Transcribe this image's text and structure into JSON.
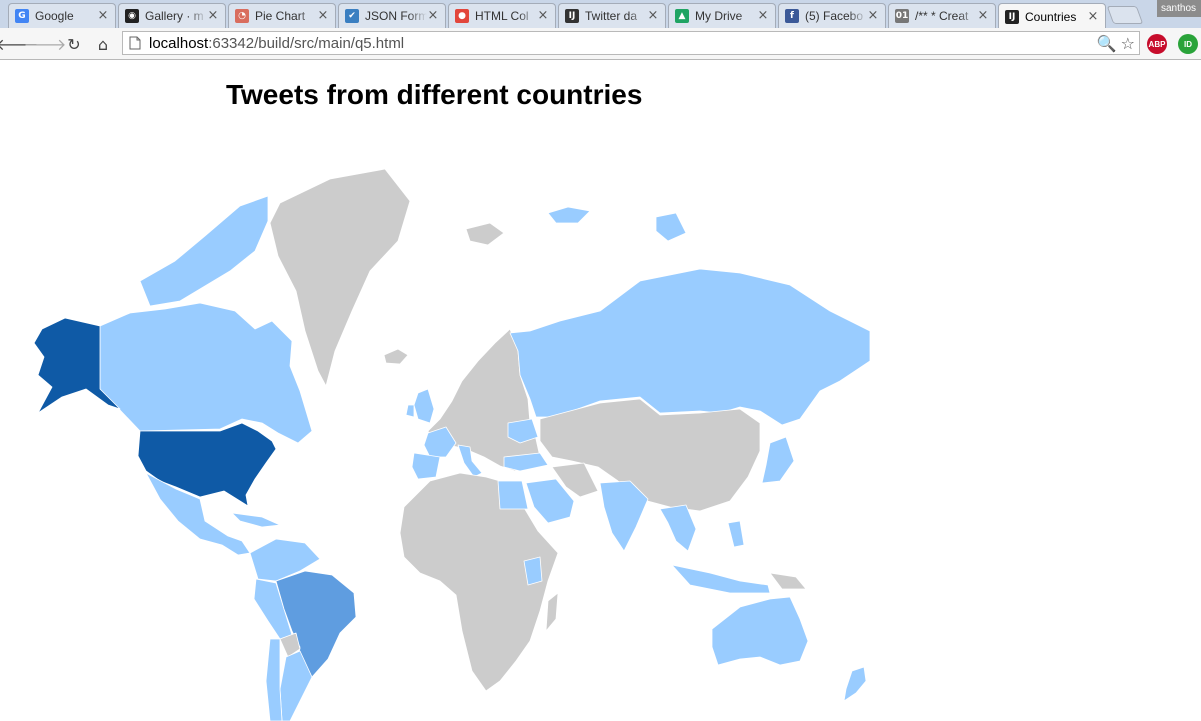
{
  "browser": {
    "tabs": [
      {
        "title": "Google",
        "icon": "google-icon",
        "color": "#4285f4",
        "glyph": "G",
        "active": false
      },
      {
        "title": "Gallery · m",
        "icon": "github-icon",
        "color": "#222222",
        "glyph": "◉",
        "active": false
      },
      {
        "title": "Pie Chart",
        "icon": "pie-chart-icon",
        "color": "#d96d5e",
        "glyph": "◔",
        "active": false
      },
      {
        "title": "JSON Form",
        "icon": "checkbox-icon",
        "color": "#3a7fc1",
        "glyph": "✔",
        "active": false
      },
      {
        "title": "HTML Col",
        "icon": "color-wheel-icon",
        "color": "#e2463b",
        "glyph": "●",
        "active": false
      },
      {
        "title": "Twitter da",
        "icon": "intellij-icon",
        "color": "#333333",
        "glyph": "IJ",
        "active": false
      },
      {
        "title": "My Drive",
        "icon": "drive-icon",
        "color": "#1fa463",
        "glyph": "▲",
        "active": false
      },
      {
        "title": "(5) Facebo",
        "icon": "facebook-icon",
        "color": "#3b5998",
        "glyph": "f",
        "active": false
      },
      {
        "title": "/** * Creat",
        "icon": "binary-file-icon",
        "color": "#777777",
        "glyph": "01",
        "active": false
      },
      {
        "title": "Countries",
        "icon": "intellij-icon",
        "color": "#222222",
        "glyph": "IJ",
        "active": true
      }
    ],
    "profile_name": "santhos",
    "url_host": "localhost",
    "url_rest": ":63342/build/src/main/q5.html",
    "extensions": [
      {
        "name": "adblock-plus-icon",
        "label": "ABP",
        "color": "#c70d2c"
      },
      {
        "name": "extension-id-icon",
        "label": "ID",
        "color": "#2aa33a"
      }
    ]
  },
  "page": {
    "title": "Tweets from different countries"
  },
  "map_legend_colors": {
    "none": "#cccccc",
    "low": "#99ccff",
    "medium": "#5f9de0",
    "high": "#0f5aa6"
  }
}
